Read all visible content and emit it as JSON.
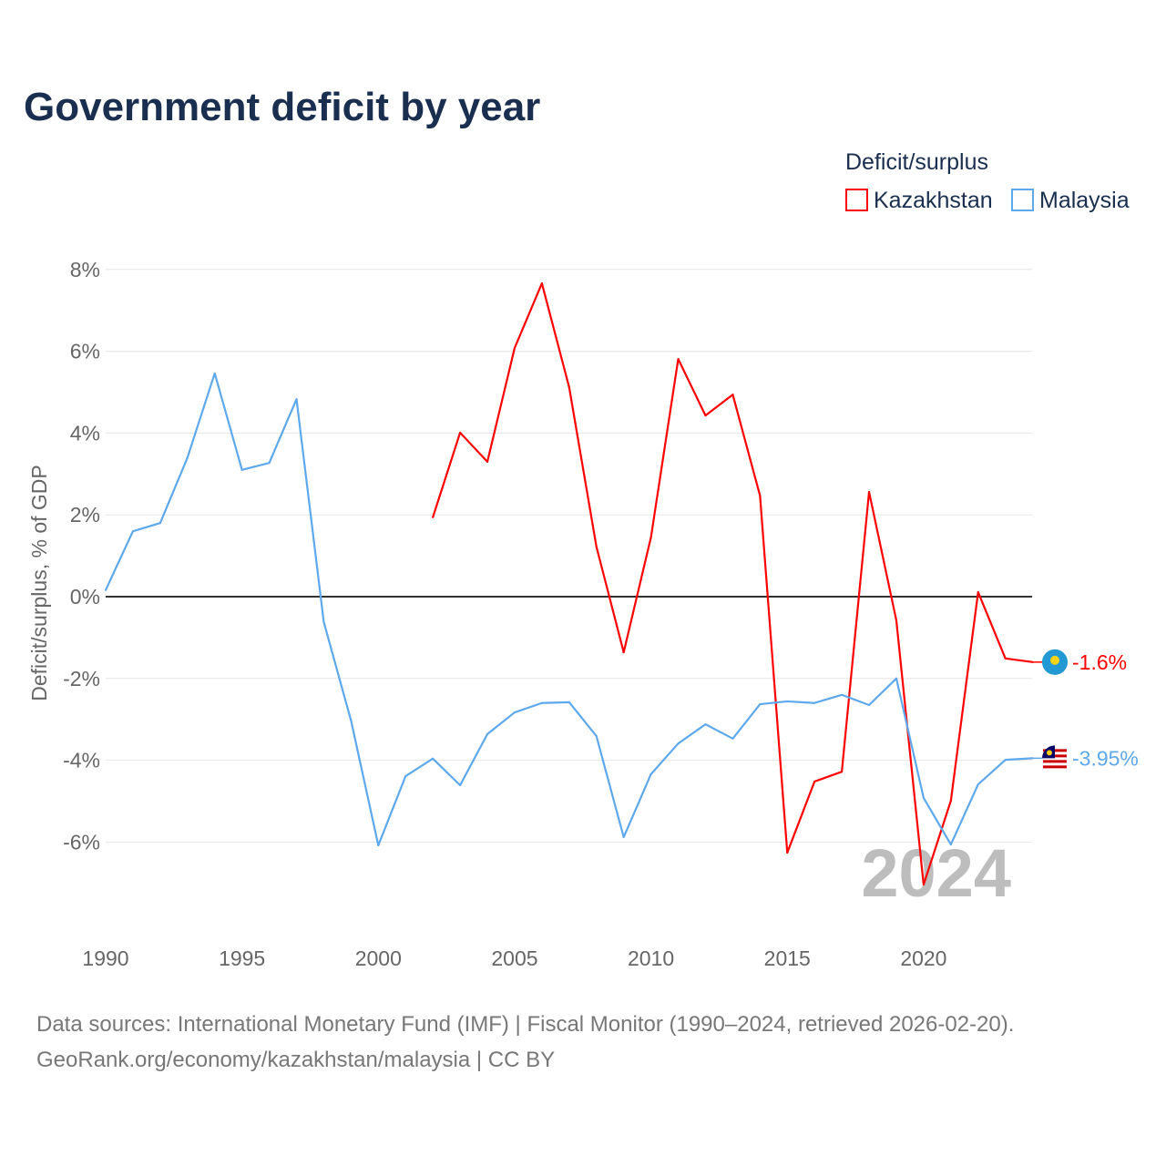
{
  "chart_data": {
    "type": "line",
    "title": "Government deficit by year",
    "ylabel": "Deficit/surplus, % of GDP",
    "xlabel": "",
    "legend_title": "Deficit/surplus",
    "legend_position": "top-right",
    "xlim": [
      1990,
      2024
    ],
    "ylim": [
      -8,
      8
    ],
    "x_ticks": [
      1990,
      1995,
      2000,
      2005,
      2010,
      2015,
      2020
    ],
    "y_ticks": [
      -6,
      -4,
      -2,
      0,
      2,
      4,
      6,
      8
    ],
    "y_tick_labels": [
      "-6%",
      "-4%",
      "-2%",
      "0%",
      "2%",
      "4%",
      "6%",
      "8%"
    ],
    "grid": true,
    "year_watermark": "2024",
    "series": [
      {
        "name": "Kazakhstan",
        "color": "#ff0000",
        "end_label": "-1.6%",
        "x": [
          2002,
          2003,
          2004,
          2005,
          2006,
          2007,
          2008,
          2009,
          2010,
          2011,
          2012,
          2013,
          2014,
          2015,
          2016,
          2017,
          2018,
          2019,
          2020,
          2021,
          2022,
          2023,
          2024
        ],
        "values": [
          1.94,
          4.01,
          3.3,
          6.08,
          7.66,
          5.12,
          1.22,
          -1.36,
          1.45,
          5.81,
          4.43,
          4.94,
          2.47,
          -6.26,
          -4.52,
          -4.28,
          2.56,
          -0.58,
          -7.04,
          -4.99,
          0.11,
          -1.51,
          -1.6
        ]
      },
      {
        "name": "Malaysia",
        "color": "#5ea8ec",
        "end_label": "-3.95%",
        "x": [
          1990,
          1991,
          1992,
          1993,
          1994,
          1995,
          1996,
          1997,
          1998,
          1999,
          2000,
          2001,
          2002,
          2003,
          2004,
          2005,
          2006,
          2007,
          2008,
          2009,
          2010,
          2011,
          2012,
          2013,
          2014,
          2015,
          2016,
          2017,
          2018,
          2019,
          2020,
          2021,
          2022,
          2023,
          2024
        ],
        "values": [
          0.16,
          1.6,
          1.8,
          3.4,
          5.46,
          3.1,
          3.27,
          4.83,
          -0.62,
          -3.03,
          -6.08,
          -4.39,
          -3.96,
          -4.61,
          -3.36,
          -2.83,
          -2.6,
          -2.58,
          -3.41,
          -5.88,
          -4.34,
          -3.59,
          -3.12,
          -3.47,
          -2.63,
          -2.56,
          -2.6,
          -2.4,
          -2.65,
          -2.0,
          -4.92,
          -6.06,
          -4.59,
          -3.99,
          -3.95
        ]
      }
    ]
  },
  "footer": {
    "line1": "Data sources: International Monetary Fund (IMF) | Fiscal Monitor (1990–2024, retrieved 2026-02-20).",
    "line2": "GeoRank.org/economy/kazakhstan/malaysia | CC BY"
  }
}
